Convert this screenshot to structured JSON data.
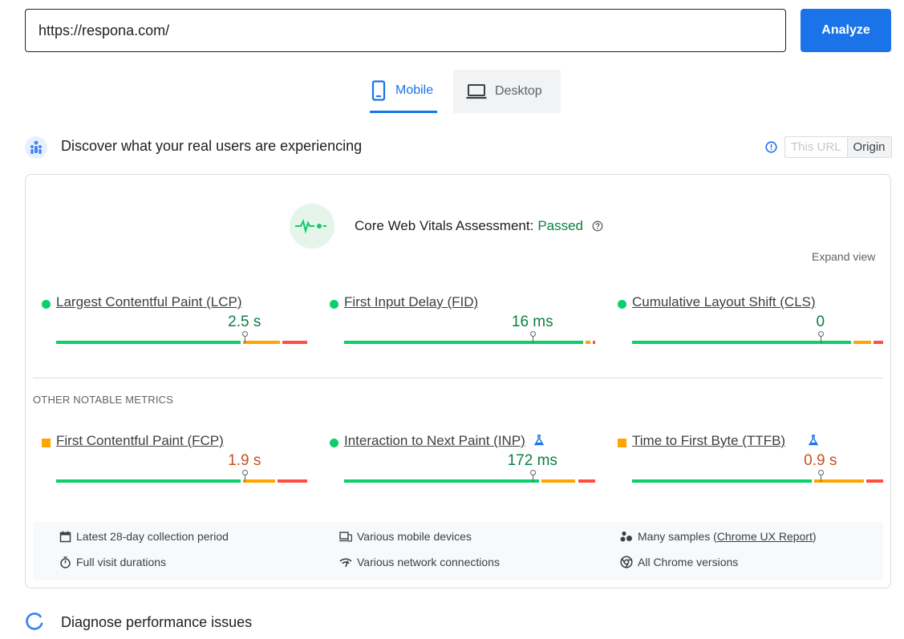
{
  "search": {
    "url_value": "https://respona.com/",
    "analyze_label": "Analyze"
  },
  "tabs": {
    "mobile_label": "Mobile",
    "desktop_label": "Desktop",
    "active": "mobile"
  },
  "field_data": {
    "title": "Discover what your real users are experiencing",
    "toggle": {
      "this_url": "This URL",
      "origin": "Origin",
      "selected": "Origin"
    },
    "assessment": {
      "label": "Core Web Vitals Assessment:",
      "result": "Passed"
    },
    "expand_label": "Expand view",
    "core_metrics": [
      {
        "label": "Largest Contentful Paint (LCP)",
        "value": "2.5 s",
        "rating": "good",
        "distribution": [
          75,
          15,
          10
        ],
        "marker_fraction": 0.75
      },
      {
        "label": "First Input Delay (FID)",
        "value": "16 ms",
        "rating": "good",
        "distribution": [
          97,
          2,
          1
        ],
        "marker_fraction": 0.75
      },
      {
        "label": "Cumulative Layout Shift (CLS)",
        "value": "0",
        "rating": "good",
        "distribution": [
          89,
          7,
          4
        ],
        "marker_fraction": 0.75
      }
    ],
    "other_label": "OTHER NOTABLE METRICS",
    "other_metrics": [
      {
        "label": "First Contentful Paint (FCP)",
        "value": "1.9 s",
        "rating": "avg",
        "experimental": false,
        "distribution": [
          75,
          13,
          12
        ],
        "marker_fraction": 0.75
      },
      {
        "label": "Interaction to Next Paint (INP)",
        "value": "172 ms",
        "rating": "good",
        "experimental": true,
        "distribution": [
          79,
          14,
          7
        ],
        "marker_fraction": 0.75
      },
      {
        "label": "Time to First Byte (TTFB)",
        "value": "0.9 s",
        "rating": "avg",
        "experimental": true,
        "distribution": [
          73,
          20,
          7
        ],
        "marker_fraction": 0.75
      }
    ],
    "info": {
      "collection_period": "Latest 28-day collection period",
      "devices": "Various mobile devices",
      "samples_prefix": "Many samples (",
      "samples_link": "Chrome UX Report",
      "samples_suffix": ")",
      "durations": "Full visit durations",
      "network": "Various network connections",
      "chrome": "All Chrome versions"
    }
  },
  "diagnose": {
    "title": "Diagnose performance issues"
  },
  "colors": {
    "accent": "#1a73e8",
    "good": "#0cce6b",
    "average": "#ffa400",
    "poor": "#ff4e42",
    "good_text": "#0d8043",
    "avg_text": "#c5521e"
  }
}
